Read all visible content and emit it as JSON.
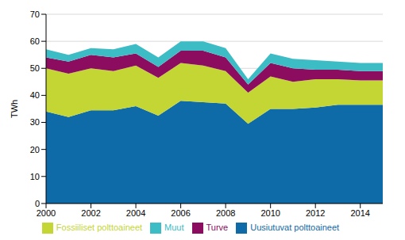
{
  "chart_data": {
    "type": "area",
    "stacked": true,
    "y_label": "TWh",
    "x": [
      2000,
      2001,
      2002,
      2003,
      2004,
      2005,
      2006,
      2007,
      2008,
      2009,
      2010,
      2011,
      2012,
      2013,
      2014,
      2015
    ],
    "xlim": [
      2000,
      2015
    ],
    "xticks": [
      2000,
      2002,
      2004,
      2006,
      2008,
      2010,
      2012,
      2014
    ],
    "ylim": [
      0,
      70
    ],
    "yticks": [
      0,
      10,
      20,
      30,
      40,
      50,
      60,
      70
    ],
    "grid": true,
    "legend": "bottom",
    "series": [
      {
        "name": "Uusiutuvat polttoaineet",
        "color": "#0f6aa8",
        "values": [
          34,
          32,
          34.5,
          34.5,
          36,
          32.5,
          38,
          37.5,
          37,
          29.5,
          35,
          35,
          35.5,
          36.5,
          36.5,
          36.5
        ]
      },
      {
        "name": "Fossiiliset polttoaineet",
        "color": "#c3d634",
        "values": [
          16,
          16,
          15.5,
          14.5,
          15,
          14,
          14,
          13.5,
          12,
          11.5,
          12,
          10,
          10.5,
          9.5,
          9,
          9
        ]
      },
      {
        "name": "Turve",
        "color": "#8c0d5f",
        "values": [
          4,
          4.5,
          5,
          5,
          4.5,
          4,
          4.5,
          5.5,
          5,
          3,
          5,
          5,
          3.5,
          3.5,
          3.5,
          3.5
        ]
      },
      {
        "name": "Muut",
        "color": "#3cbcc4",
        "values": [
          3,
          2.5,
          2.5,
          3,
          3.5,
          3.5,
          3.5,
          3.5,
          3.5,
          2,
          3.5,
          3.5,
          3.5,
          3,
          3,
          3
        ]
      }
    ]
  }
}
